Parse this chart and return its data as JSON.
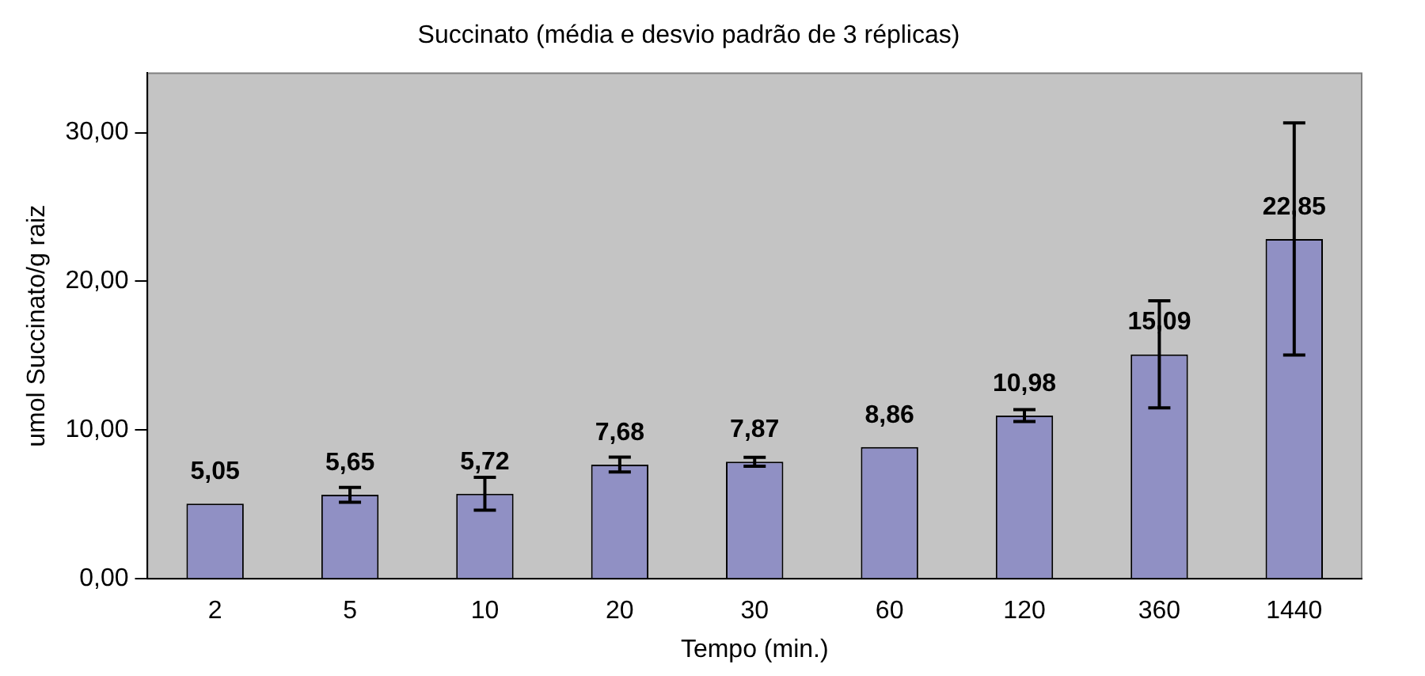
{
  "chart_data": {
    "type": "bar",
    "title": "Succinato (média e desvio padrão de 3 réplicas)",
    "xlabel": "Tempo (min.)",
    "ylabel": "umol Succinato/g raiz",
    "categories": [
      "2",
      "5",
      "10",
      "20",
      "30",
      "60",
      "120",
      "360",
      "1440"
    ],
    "values": [
      5.05,
      5.65,
      5.72,
      7.68,
      7.87,
      8.86,
      10.98,
      15.09,
      22.85
    ],
    "value_labels": [
      "5,05",
      "5,65",
      "5,72",
      "7,68",
      "7,87",
      "8,86",
      "10,98",
      "15,09",
      "22,85"
    ],
    "errors": [
      null,
      0.5,
      1.1,
      0.5,
      0.3,
      null,
      0.4,
      3.6,
      7.8
    ],
    "color": "#9090c4",
    "ylim": [
      0,
      34
    ],
    "yticks": [
      {
        "value": 0,
        "label": "0,00"
      },
      {
        "value": 10,
        "label": "10,00"
      },
      {
        "value": 20,
        "label": "20,00"
      },
      {
        "value": 30,
        "label": "30,00"
      }
    ],
    "grid": false,
    "legend": false
  }
}
